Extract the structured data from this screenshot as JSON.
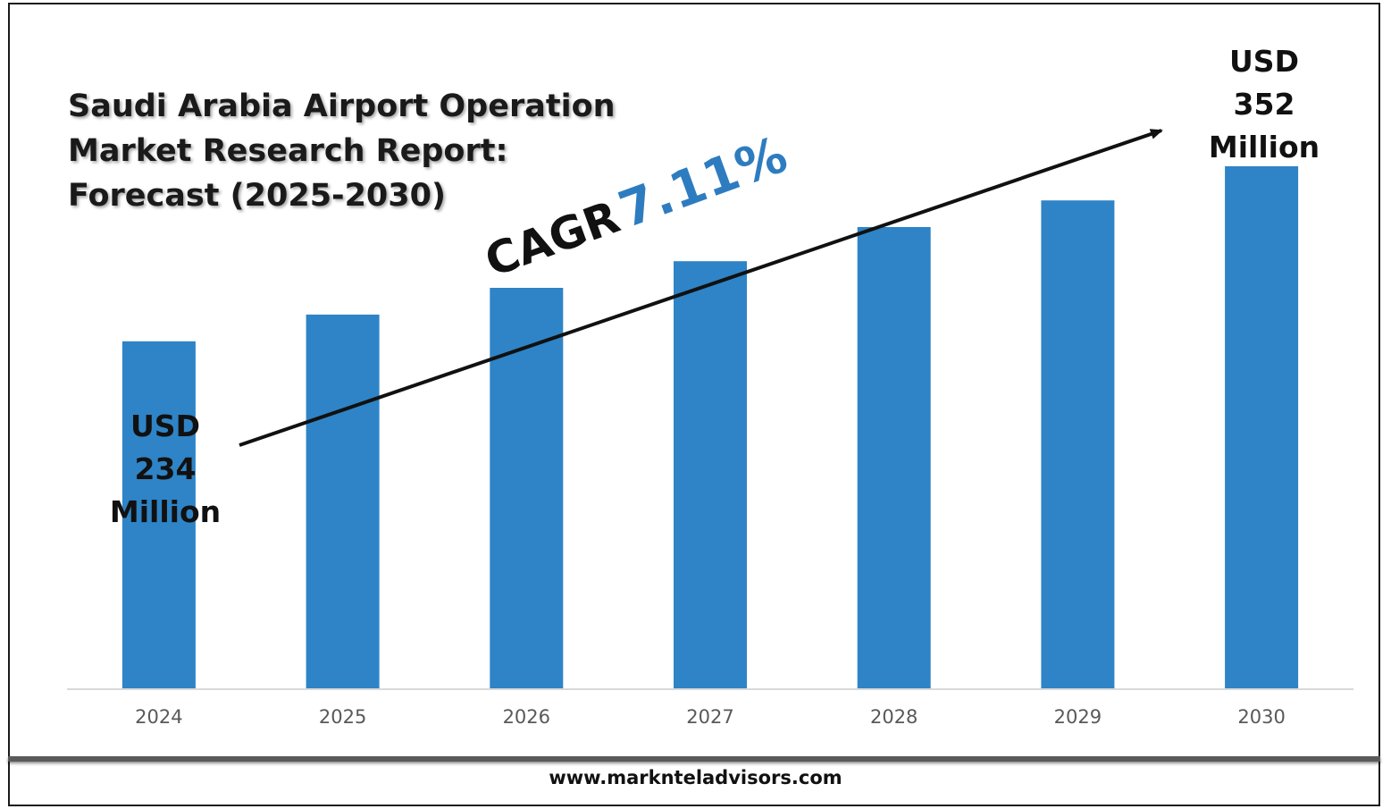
{
  "title_lines": [
    "Saudi Arabia Airport Operation",
    "Market Research Report:",
    "Forecast (2025-2030)"
  ],
  "callout_start": [
    "USD",
    "234",
    "Million"
  ],
  "callout_end": [
    "USD",
    "352",
    "Million"
  ],
  "cagr": {
    "label": "CAGR",
    "value": "7.11%"
  },
  "footer_url": "www.marknteladvisors.com",
  "colors": {
    "bar": "#2e84c6",
    "cagr_value": "#2e7cc0",
    "axis": "#d9d9d9",
    "tick_label": "#595959"
  },
  "chart_data": {
    "type": "bar",
    "title": "Saudi Arabia Airport Operation Market Research Report: Forecast (2025-2030)",
    "categories": [
      "2024",
      "2025",
      "2026",
      "2027",
      "2028",
      "2029",
      "2030"
    ],
    "series": [
      {
        "values": [
          234,
          252,
          270,
          288,
          311,
          329,
          352
        ]
      }
    ],
    "ylim": [
      0,
      352
    ],
    "grid": false,
    "legend": "none",
    "annotations": [
      "USD 234 Million",
      "USD 352 Million",
      "CAGR 7.11%"
    ]
  }
}
